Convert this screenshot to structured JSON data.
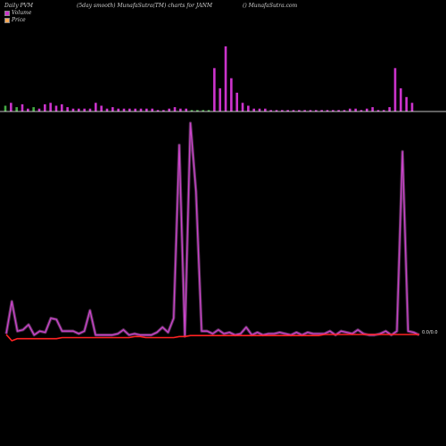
{
  "header": {
    "left": "Daily PVM",
    "middle": "(5day smooth) MunafaSutra(TM) charts for JANM",
    "right": "() MunafaSutra.com"
  },
  "legend": {
    "volume_label": "Volume",
    "price_label": "Price",
    "volume_color": "#cc33cc",
    "price_color": "#ffaa55"
  },
  "last_value_label": "0.0/0.0",
  "colors": {
    "background": "#000000",
    "volume_up": "#cc33cc",
    "volume_down": "#44aa44",
    "volume_line": "#cc44cc",
    "price_line": "#ff2222",
    "baseline": "#ffffff"
  },
  "chart_data": [
    {
      "type": "bar",
      "title": "",
      "series": [
        {
          "name": "Volume",
          "values": [
            4,
            6,
            3,
            5,
            2,
            3,
            2,
            5,
            6,
            4,
            5,
            3,
            2,
            2,
            2,
            2,
            6,
            4,
            2,
            3,
            2,
            2,
            2,
            2,
            2,
            2,
            2,
            1,
            1,
            2,
            3,
            2,
            2,
            1,
            1,
            1,
            1,
            30,
            16,
            45,
            23,
            13,
            6,
            4,
            2,
            2,
            2,
            1,
            1,
            1,
            1,
            1,
            1,
            1,
            1,
            1,
            1,
            1,
            1,
            1,
            1,
            2,
            2,
            1,
            2,
            3,
            1,
            1,
            3,
            30,
            16,
            10,
            6
          ],
          "direction": [
            "d",
            "u",
            "d",
            "u",
            "u",
            "d",
            "u",
            "u",
            "u",
            "u",
            "u",
            "u",
            "u",
            "u",
            "u",
            "u",
            "u",
            "u",
            "u",
            "u",
            "u",
            "u",
            "u",
            "u",
            "u",
            "u",
            "u",
            "u",
            "u",
            "u",
            "u",
            "u",
            "u",
            "d",
            "d",
            "d",
            "d",
            "u",
            "u",
            "u",
            "u",
            "u",
            "u",
            "u",
            "u",
            "u",
            "u",
            "u",
            "u",
            "u",
            "u",
            "u",
            "u",
            "u",
            "u",
            "u",
            "u",
            "u",
            "u",
            "u",
            "u",
            "u",
            "u",
            "u",
            "u",
            "u",
            "u",
            "u",
            "u",
            "u",
            "u",
            "u",
            "u"
          ]
        }
      ]
    },
    {
      "type": "line",
      "title": "",
      "series": [
        {
          "name": "Volume",
          "values": [
            2,
            27,
            4,
            5,
            9,
            1,
            4,
            3,
            14,
            13,
            4,
            4,
            4,
            2,
            4,
            20,
            1,
            1,
            1,
            1,
            2,
            5,
            1,
            2,
            1,
            1,
            1,
            3,
            7,
            3,
            14,
            148,
            0,
            165,
            112,
            4,
            4,
            2,
            5,
            2,
            3,
            1,
            2,
            7,
            1,
            3,
            1,
            2,
            2,
            3,
            2,
            1,
            3,
            1,
            3,
            2,
            2,
            2,
            4,
            1,
            4,
            3,
            2,
            5,
            2,
            1,
            1,
            2,
            4,
            1,
            4,
            143,
            4,
            3,
            1
          ]
        },
        {
          "name": "Price",
          "values": [
            3,
            0,
            1,
            1,
            1,
            1,
            1,
            1,
            1,
            1,
            1.5,
            1.5,
            1.5,
            1.5,
            1.5,
            1.5,
            1.5,
            1.5,
            1.5,
            1.5,
            1.5,
            1.5,
            1.5,
            2,
            2,
            1.5,
            1.5,
            1.5,
            1.5,
            1.5,
            1.5,
            2,
            2,
            2.5,
            2.5,
            2.5,
            2.5,
            2.5,
            2.5,
            2.5,
            2.5,
            2.5,
            2.5,
            2.5,
            2.5,
            2.5,
            2.5,
            2.5,
            2.5,
            2.5,
            2.5,
            2.5,
            2.5,
            2.5,
            2.5,
            2.5,
            2.5,
            3,
            3,
            3,
            3,
            3,
            3,
            3,
            3,
            3,
            3,
            3,
            3,
            3,
            3,
            3,
            3,
            3,
            3
          ]
        }
      ]
    }
  ]
}
